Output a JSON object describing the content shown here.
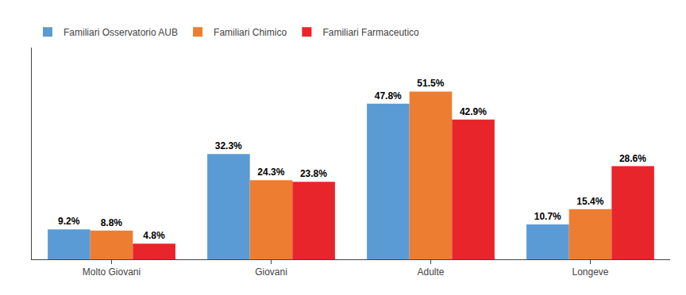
{
  "chart_data": {
    "type": "bar",
    "categories": [
      "Molto Giovani",
      "Giovani",
      "Adulte",
      "Longeve"
    ],
    "series": [
      {
        "name": "Familiari Osservatorio AUB",
        "color": "#5B9BD5",
        "values": [
          9.2,
          32.3,
          47.8,
          10.7
        ],
        "value_labels": [
          "9.2%",
          "32.3%",
          "47.8%",
          "10.7%"
        ]
      },
      {
        "name": "Familiari Chimico",
        "color": "#ED7D31",
        "values": [
          8.8,
          24.3,
          51.5,
          15.4
        ],
        "value_labels": [
          "8.8%",
          "24.3%",
          "51.5%",
          "15.4%"
        ]
      },
      {
        "name": "Familiari Farmaceutico",
        "color": "#E8252A",
        "values": [
          4.8,
          23.8,
          42.9,
          28.6
        ],
        "value_labels": [
          "4.8%",
          "23.8%",
          "42.9%",
          "28.6%"
        ]
      }
    ],
    "ylim": [
      0,
      65
    ],
    "data_labels": true,
    "tick_labels": "x",
    "grid": false,
    "legend": "top left"
  }
}
